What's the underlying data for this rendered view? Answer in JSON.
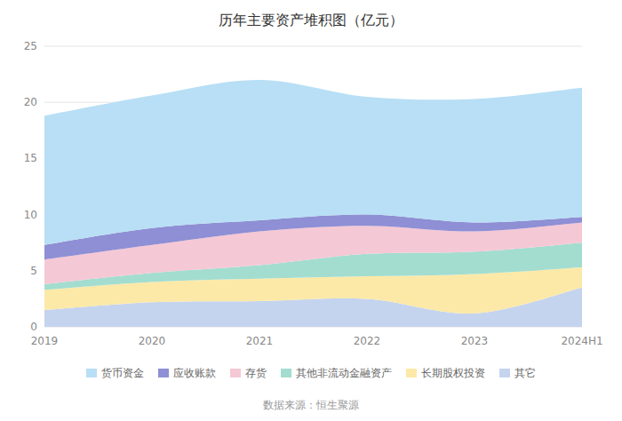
{
  "chart_data": {
    "type": "area",
    "stacked": true,
    "title": "历年主要资产堆积图（亿元）",
    "annotations": [
      "数据来源：恒生聚源"
    ],
    "categories": [
      "2019",
      "2020",
      "2021",
      "2022",
      "2023",
      "2024H1"
    ],
    "series": [
      {
        "name": "其它",
        "color": "#c5d4ee",
        "values": [
          1.5,
          2.2,
          2.3,
          2.5,
          1.2,
          3.5
        ]
      },
      {
        "name": "长期股权投资",
        "color": "#fce9a8",
        "values": [
          1.8,
          1.8,
          2.0,
          2.0,
          3.5,
          1.8
        ]
      },
      {
        "name": "其他非流动金融资产",
        "color": "#a3ddd0",
        "values": [
          0.5,
          0.8,
          1.2,
          2.0,
          2.0,
          2.2
        ]
      },
      {
        "name": "存货",
        "color": "#f5c8d5",
        "values": [
          2.2,
          2.5,
          3.0,
          2.5,
          1.8,
          1.8
        ]
      },
      {
        "name": "应收账款",
        "color": "#8e8fd4",
        "values": [
          1.3,
          1.5,
          1.0,
          1.0,
          0.8,
          0.5
        ]
      },
      {
        "name": "货币资金",
        "color": "#b8dff5",
        "values": [
          11.5,
          11.8,
          12.5,
          10.5,
          11.0,
          11.5
        ]
      }
    ],
    "ylim": [
      0,
      25
    ],
    "yticks": [
      0,
      5,
      10,
      15,
      20,
      25
    ],
    "grid": true,
    "legend": "bottom"
  }
}
